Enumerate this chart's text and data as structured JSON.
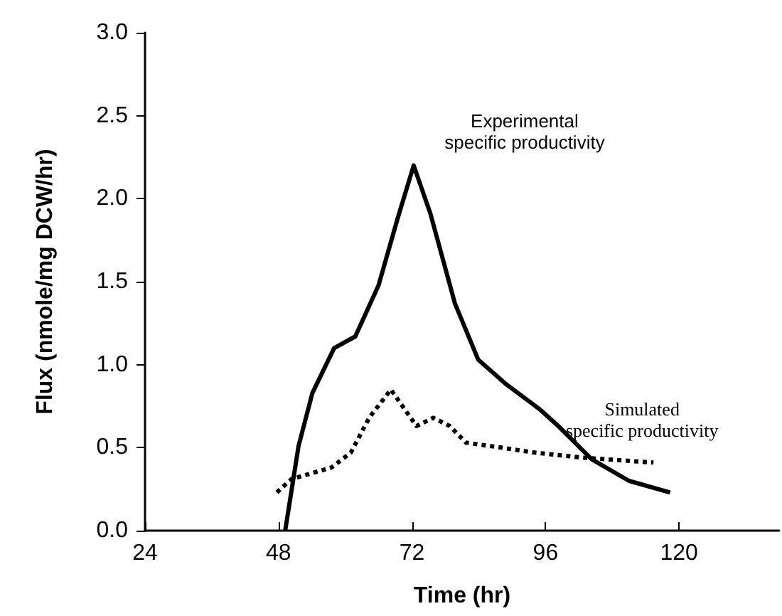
{
  "chart_data": {
    "type": "line",
    "xlabel": "Time (hr)",
    "ylabel": "Flux (nmole/mg DCW/hr)",
    "xlim": [
      24,
      138
    ],
    "xticks": [
      24,
      48,
      72,
      96,
      120
    ],
    "ylim": [
      0,
      3
    ],
    "yticks": [
      {
        "value": 0,
        "label": "0.0"
      },
      {
        "value": 0.5,
        "label": "0.5"
      },
      {
        "value": 1,
        "label": "1.0"
      },
      {
        "value": 1.5,
        "label": "1.5"
      },
      {
        "value": 2,
        "label": "2.0"
      },
      {
        "value": 2.5,
        "label": "2.5"
      },
      {
        "value": 3,
        "label": "3.0"
      }
    ],
    "grid": false,
    "marker": "none",
    "series": [
      {
        "name": "Experimental\nspecific productivity",
        "color": "#000000",
        "line_style": "solid",
        "x": [
          49.2,
          51.6,
          54.1,
          58,
          61.8,
          66,
          69.4,
          72.3,
          75.3,
          79.7,
          83.9,
          89,
          95,
          98.3,
          104.3,
          111,
          118.4
        ],
        "values": [
          0,
          0.51,
          0.83,
          1.1,
          1.17,
          1.48,
          1.88,
          2.2,
          1.91,
          1.37,
          1.03,
          0.88,
          0.73,
          0.63,
          0.43,
          0.3,
          0.23
        ]
      },
      {
        "name": "Simulated\nspecific productivity",
        "color": "#000000",
        "line_style": "dotted",
        "x": [
          47.7,
          50.3,
          57.5,
          61,
          64.3,
          68.2,
          72.8,
          75.8,
          78.8,
          81.7,
          88.1,
          94.1,
          102.6,
          115.4
        ],
        "values": [
          0.23,
          0.31,
          0.38,
          0.47,
          0.68,
          0.85,
          0.63,
          0.68,
          0.63,
          0.53,
          0.5,
          0.47,
          0.44,
          0.41
        ]
      }
    ]
  }
}
